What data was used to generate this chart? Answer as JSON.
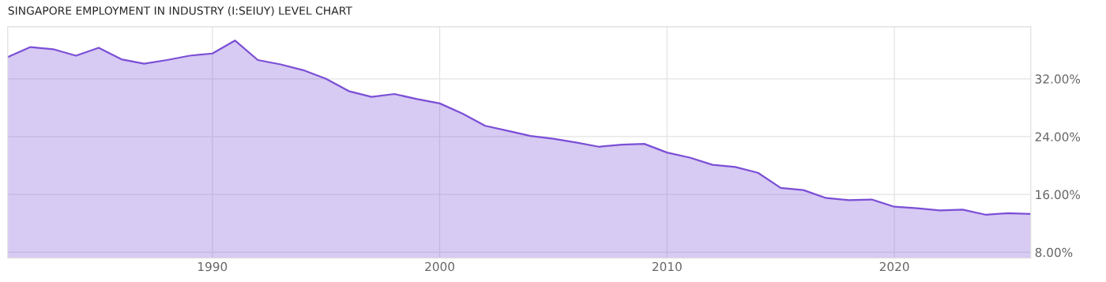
{
  "chart_data": {
    "type": "area",
    "title": "SINGAPORE EMPLOYMENT IN INDUSTRY (I:SEIUY) LEVEL CHART",
    "x": [
      1981,
      1982,
      1983,
      1984,
      1985,
      1986,
      1987,
      1988,
      1989,
      1990,
      1991,
      1992,
      1993,
      1994,
      1995,
      1996,
      1997,
      1998,
      1999,
      2000,
      2001,
      2002,
      2003,
      2004,
      2005,
      2006,
      2007,
      2008,
      2009,
      2010,
      2011,
      2012,
      2013,
      2014,
      2015,
      2016,
      2017,
      2018,
      2019,
      2020,
      2021,
      2022,
      2023,
      2024,
      2025,
      2026
    ],
    "series": [
      {
        "color": "#7b4fd6",
        "values": [
          35.0,
          36.4,
          36.1,
          35.2,
          36.3,
          34.7,
          34.1,
          34.6,
          35.2,
          35.5,
          37.3,
          34.6,
          34.0,
          33.2,
          32.0,
          30.3,
          29.5,
          29.9,
          29.2,
          28.6,
          27.2,
          25.5,
          24.8,
          24.1,
          23.7,
          23.2,
          22.6,
          22.9,
          23.0,
          21.8,
          21.1,
          20.1,
          19.8,
          19.0,
          16.9,
          16.6,
          15.5,
          15.2,
          15.3,
          14.3,
          14.1,
          13.8,
          13.9,
          13.2,
          13.4,
          13.3
        ]
      }
    ],
    "xlim": [
      1981,
      2026
    ],
    "ylim": [
      7.2,
      39.2
    ],
    "xticks": [
      1990,
      2000,
      2010,
      2020
    ],
    "yticks": [
      {
        "value": 8,
        "label": "8.00%"
      },
      {
        "value": 16,
        "label": "16.00%"
      },
      {
        "value": 24,
        "label": "24.00%"
      },
      {
        "value": 32,
        "label": "32.00%"
      }
    ],
    "grid": true
  }
}
